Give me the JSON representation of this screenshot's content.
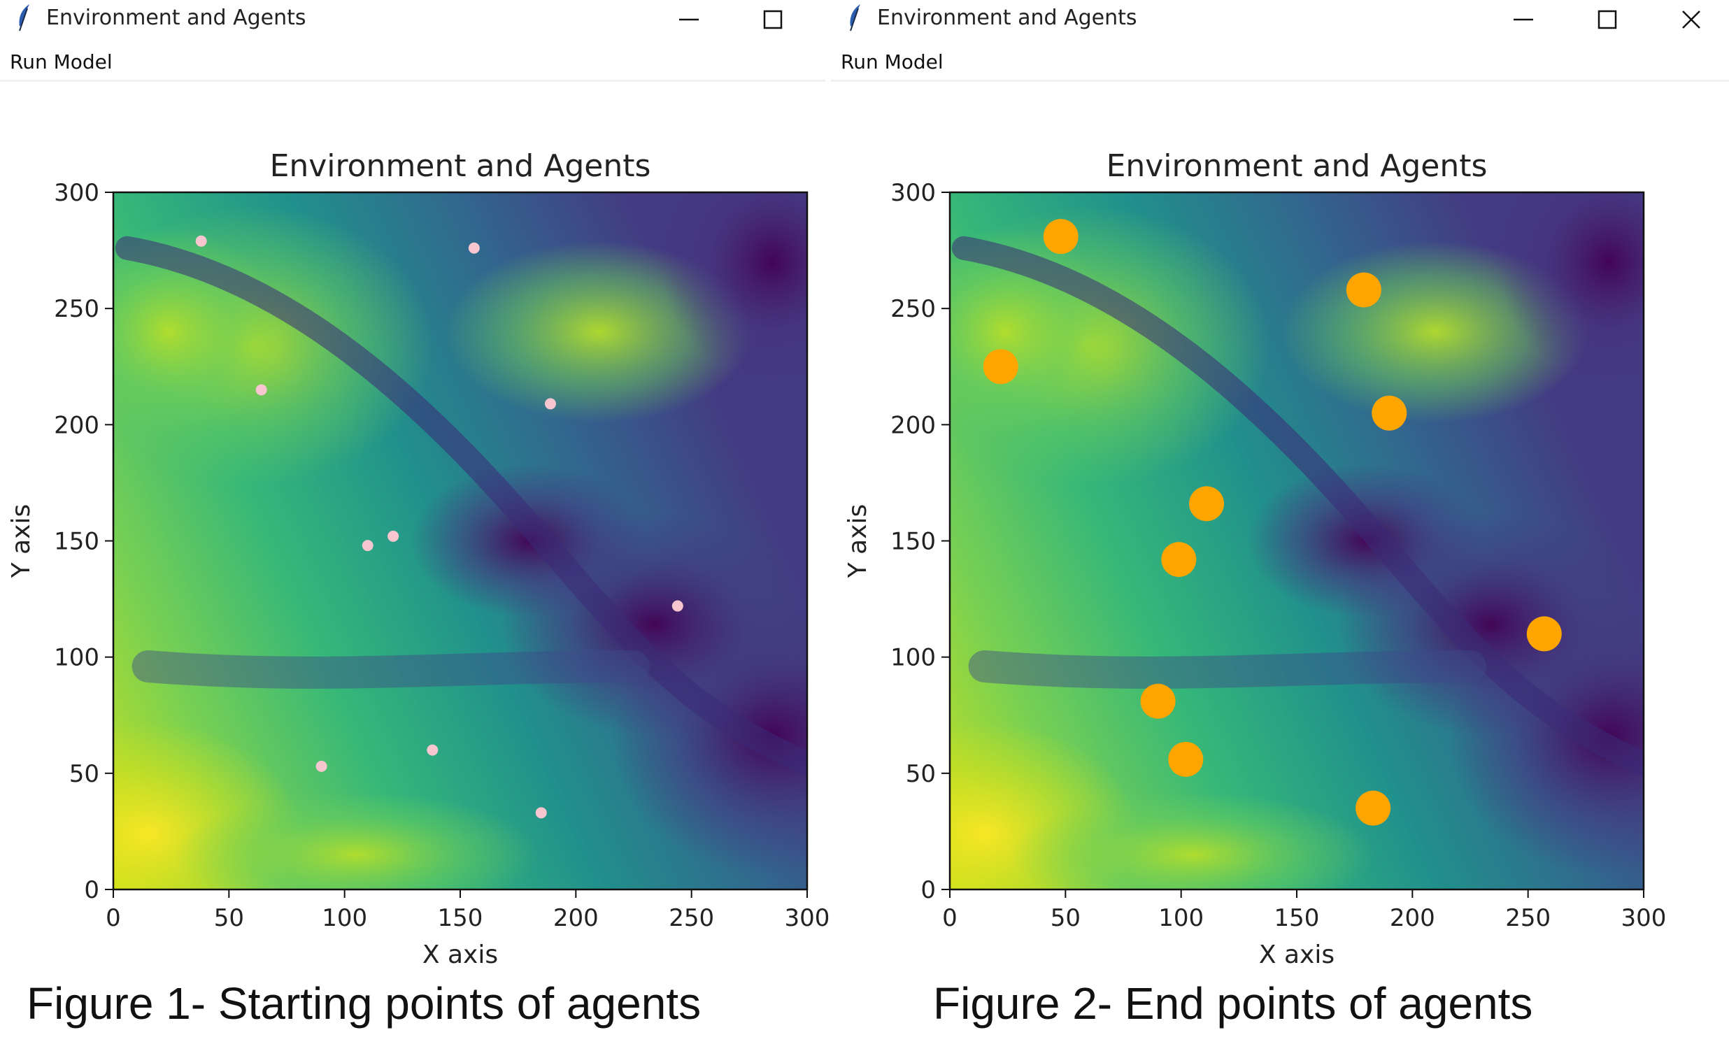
{
  "windows": [
    {
      "title": "Environment and Agents",
      "menu": [
        "Run Model"
      ],
      "buttons": [
        "minimize",
        "maximize"
      ],
      "caption": "Figure 1- Starting points of agents"
    },
    {
      "title": "Environment and Agents",
      "menu": [
        "Run Model"
      ],
      "buttons": [
        "minimize",
        "maximize",
        "close"
      ],
      "caption": "Figure 2- End points of agents"
    }
  ],
  "icons": {
    "app": "feather-icon",
    "minimize": "minimize-icon",
    "maximize": "maximize-icon",
    "close": "close-icon"
  },
  "chart_data": [
    {
      "type": "scatter",
      "title": "Environment and Agents",
      "xlabel": "X axis",
      "ylabel": "Y axis",
      "xlim": [
        0,
        300
      ],
      "ylim": [
        0,
        300
      ],
      "xticks": [
        0,
        50,
        100,
        150,
        200,
        250,
        300
      ],
      "yticks": [
        0,
        50,
        100,
        150,
        200,
        250,
        300
      ],
      "background": "viridis elevation raster",
      "marker_color": "#f7c6cf",
      "marker_size": "small",
      "points": [
        [
          38,
          279
        ],
        [
          156,
          276
        ],
        [
          64,
          215
        ],
        [
          189,
          209
        ],
        [
          110,
          148
        ],
        [
          121,
          152
        ],
        [
          244,
          122
        ],
        [
          90,
          53
        ],
        [
          138,
          60
        ],
        [
          185,
          33
        ]
      ]
    },
    {
      "type": "scatter",
      "title": "Environment and Agents",
      "xlabel": "X axis",
      "ylabel": "Y axis",
      "xlim": [
        0,
        300
      ],
      "ylim": [
        0,
        300
      ],
      "xticks": [
        0,
        50,
        100,
        150,
        200,
        250,
        300
      ],
      "yticks": [
        0,
        50,
        100,
        150,
        200,
        250,
        300
      ],
      "background": "viridis elevation raster",
      "marker_color": "#ffa500",
      "marker_size": "large",
      "points": [
        [
          48,
          281
        ],
        [
          179,
          258
        ],
        [
          22,
          225
        ],
        [
          190,
          205
        ],
        [
          111,
          166
        ],
        [
          99,
          142
        ],
        [
          257,
          110
        ],
        [
          90,
          81
        ],
        [
          102,
          56
        ],
        [
          183,
          35
        ]
      ]
    }
  ]
}
